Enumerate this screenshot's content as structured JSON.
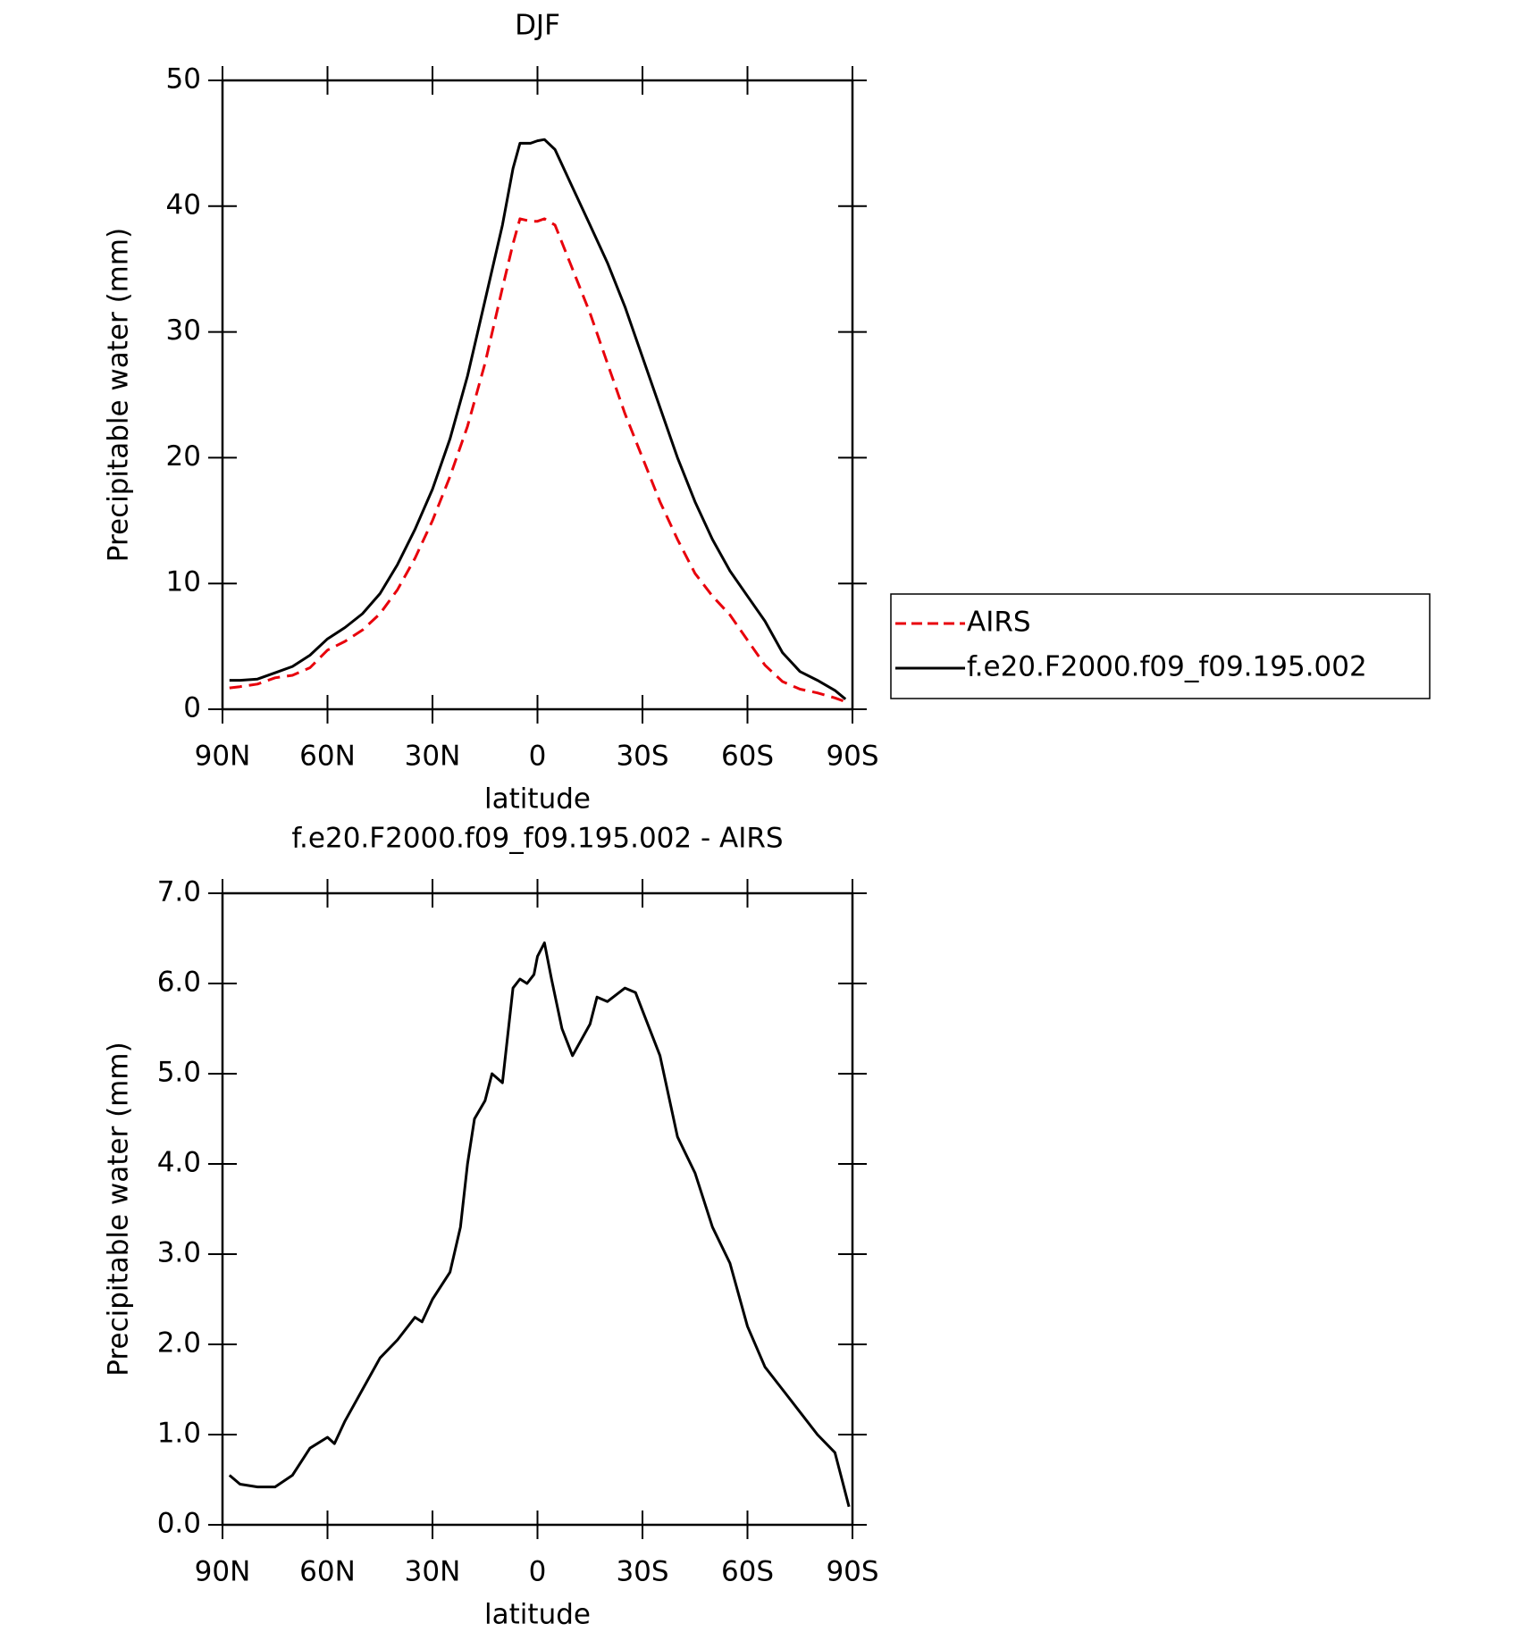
{
  "chart_data": [
    {
      "type": "line",
      "title": "DJF",
      "xlabel": "latitude",
      "ylabel": "Precipitable water (mm)",
      "x": [
        88,
        85,
        80,
        75,
        70,
        65,
        60,
        55,
        50,
        45,
        40,
        35,
        30,
        25,
        20,
        15,
        10,
        7,
        5,
        2,
        0,
        -2,
        -5,
        -10,
        -15,
        -20,
        -25,
        -30,
        -35,
        -40,
        -45,
        -50,
        -55,
        -60,
        -65,
        -70,
        -75,
        -80,
        -85,
        -88
      ],
      "series": [
        {
          "name": "AIRS",
          "color": "#e8000b",
          "linestyle": "dashed",
          "values": [
            1.7,
            1.8,
            2,
            2.5,
            2.7,
            3.3,
            4.7,
            5.4,
            6.3,
            7.6,
            9.5,
            12,
            15,
            18.5,
            22.5,
            27.5,
            33.5,
            37,
            39,
            38.8,
            38.8,
            39,
            38.5,
            35,
            31.5,
            27.5,
            23.5,
            20,
            16.5,
            13.5,
            10.8,
            9,
            7.5,
            5.5,
            3.5,
            2.2,
            1.6,
            1.3,
            0.9,
            0.6
          ]
        },
        {
          "name": "f.e20.F2000.f09_f09.195.002",
          "color": "#000000",
          "linestyle": "solid",
          "values": [
            2.3,
            2.3,
            2.4,
            2.9,
            3.4,
            4.3,
            5.6,
            6.5,
            7.6,
            9.2,
            11.5,
            14.3,
            17.5,
            21.5,
            26.5,
            32.5,
            38.5,
            43,
            45,
            45,
            45.2,
            45.3,
            44.5,
            41.5,
            38.5,
            35.5,
            32,
            28,
            24,
            20,
            16.5,
            13.5,
            11,
            9,
            7,
            4.5,
            3,
            2.3,
            1.5,
            0.8
          ]
        }
      ],
      "xlim": [
        90,
        -90
      ],
      "xticks": [
        {
          "value": 90,
          "label": "90N"
        },
        {
          "value": 60,
          "label": "60N"
        },
        {
          "value": 30,
          "label": "30N"
        },
        0,
        {
          "value": -30,
          "label": "30S"
        },
        {
          "value": -60,
          "label": "60S"
        },
        {
          "value": -90,
          "label": "90S"
        }
      ],
      "ylim": [
        0,
        50
      ],
      "yticks": [
        0,
        10,
        20,
        30,
        40,
        50
      ],
      "legend": "right"
    },
    {
      "type": "line",
      "title": "f.e20.F2000.f09_f09.195.002 - AIRS",
      "xlabel": "latitude",
      "ylabel": "Precipitable water (mm)",
      "x": [
        88,
        85,
        80,
        75,
        70,
        65,
        60,
        58,
        55,
        50,
        45,
        40,
        35,
        33,
        30,
        25,
        22,
        20,
        18,
        15,
        13,
        10,
        7,
        5,
        3,
        1,
        0,
        -2,
        -4,
        -7,
        -10,
        -15,
        -17,
        -20,
        -25,
        -28,
        -30,
        -35,
        -40,
        -45,
        -50,
        -55,
        -60,
        -65,
        -70,
        -75,
        -80,
        -85,
        -87,
        -89
      ],
      "series": [
        {
          "color": "#000000",
          "linestyle": "solid",
          "values": [
            0.55,
            0.45,
            0.42,
            0.42,
            0.55,
            0.85,
            0.97,
            0.9,
            1.15,
            1.5,
            1.85,
            2.05,
            2.3,
            2.25,
            2.5,
            2.8,
            3.3,
            4.0,
            4.5,
            4.7,
            5.0,
            4.9,
            5.95,
            6.05,
            6.0,
            6.1,
            6.3,
            6.45,
            6.05,
            5.5,
            5.2,
            5.55,
            5.85,
            5.8,
            5.95,
            5.9,
            5.7,
            5.2,
            4.3,
            3.9,
            3.3,
            2.9,
            2.2,
            1.75,
            1.5,
            1.25,
            1.0,
            0.8,
            0.5,
            0.2
          ]
        }
      ],
      "xlim": [
        90,
        -90
      ],
      "xticks": [
        {
          "value": 90,
          "label": "90N"
        },
        {
          "value": 60,
          "label": "60N"
        },
        {
          "value": 30,
          "label": "30N"
        },
        0,
        {
          "value": -30,
          "label": "30S"
        },
        {
          "value": -60,
          "label": "60S"
        },
        {
          "value": -90,
          "label": "90S"
        }
      ],
      "ylim": [
        0,
        7
      ],
      "yticks": [
        {
          "value": 0,
          "label": "0.0"
        },
        {
          "value": 1,
          "label": "1.0"
        },
        {
          "value": 2,
          "label": "2.0"
        },
        {
          "value": 3,
          "label": "3.0"
        },
        {
          "value": 4,
          "label": "4.0"
        },
        {
          "value": 5,
          "label": "5.0"
        },
        {
          "value": 6,
          "label": "6.0"
        },
        {
          "value": 7,
          "label": "7.0"
        }
      ]
    }
  ]
}
